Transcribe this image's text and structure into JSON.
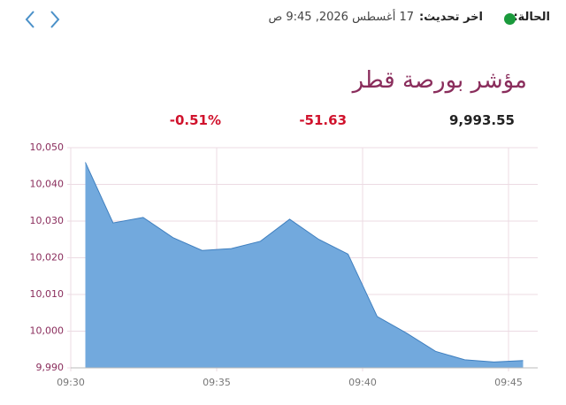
{
  "header": {
    "status_label": "الحالة:",
    "update_label": "اخر تحديث:",
    "update_value": "17 أغسطس 2026, 9:45 ص"
  },
  "index": {
    "title": "مؤشر بورصة قطر",
    "value": "9,993.55",
    "change": "-51.63",
    "change_percent": "-0.51%"
  },
  "chart_data": {
    "type": "area",
    "x": [
      570.5,
      571.45,
      572.48,
      573.5,
      574.5,
      575.5,
      576.5,
      577.5,
      578.5,
      579.5,
      580.5,
      581.5,
      582.5,
      583.5,
      584.5,
      585.5
    ],
    "series": [
      {
        "color": "#72a9dd",
        "values": [
          10046,
          10029.5,
          10031,
          10025.5,
          10022,
          10022.5,
          10024.5,
          10030.5,
          10025,
          10021,
          10004,
          9999.5,
          9994.5,
          9992.2,
          9991.6,
          9992
        ]
      }
    ],
    "xlim": [
      570,
      586
    ],
    "ylim": [
      9990,
      10050
    ],
    "xticks": [
      {
        "value": 570,
        "label": "09:30"
      },
      {
        "value": 575,
        "label": "09:35"
      },
      {
        "value": 580,
        "label": "09:40"
      },
      {
        "value": 585,
        "label": "09:45"
      }
    ],
    "yticks": [
      {
        "value": 9990,
        "label": "9,990"
      },
      {
        "value": 10000,
        "label": "10,000"
      },
      {
        "value": 10010,
        "label": "10,010"
      },
      {
        "value": 10020,
        "label": "10,020"
      },
      {
        "value": 10030,
        "label": "10,030"
      },
      {
        "value": 10040,
        "label": "10,040"
      },
      {
        "value": 10050,
        "label": "10,050"
      }
    ],
    "grid": true
  }
}
